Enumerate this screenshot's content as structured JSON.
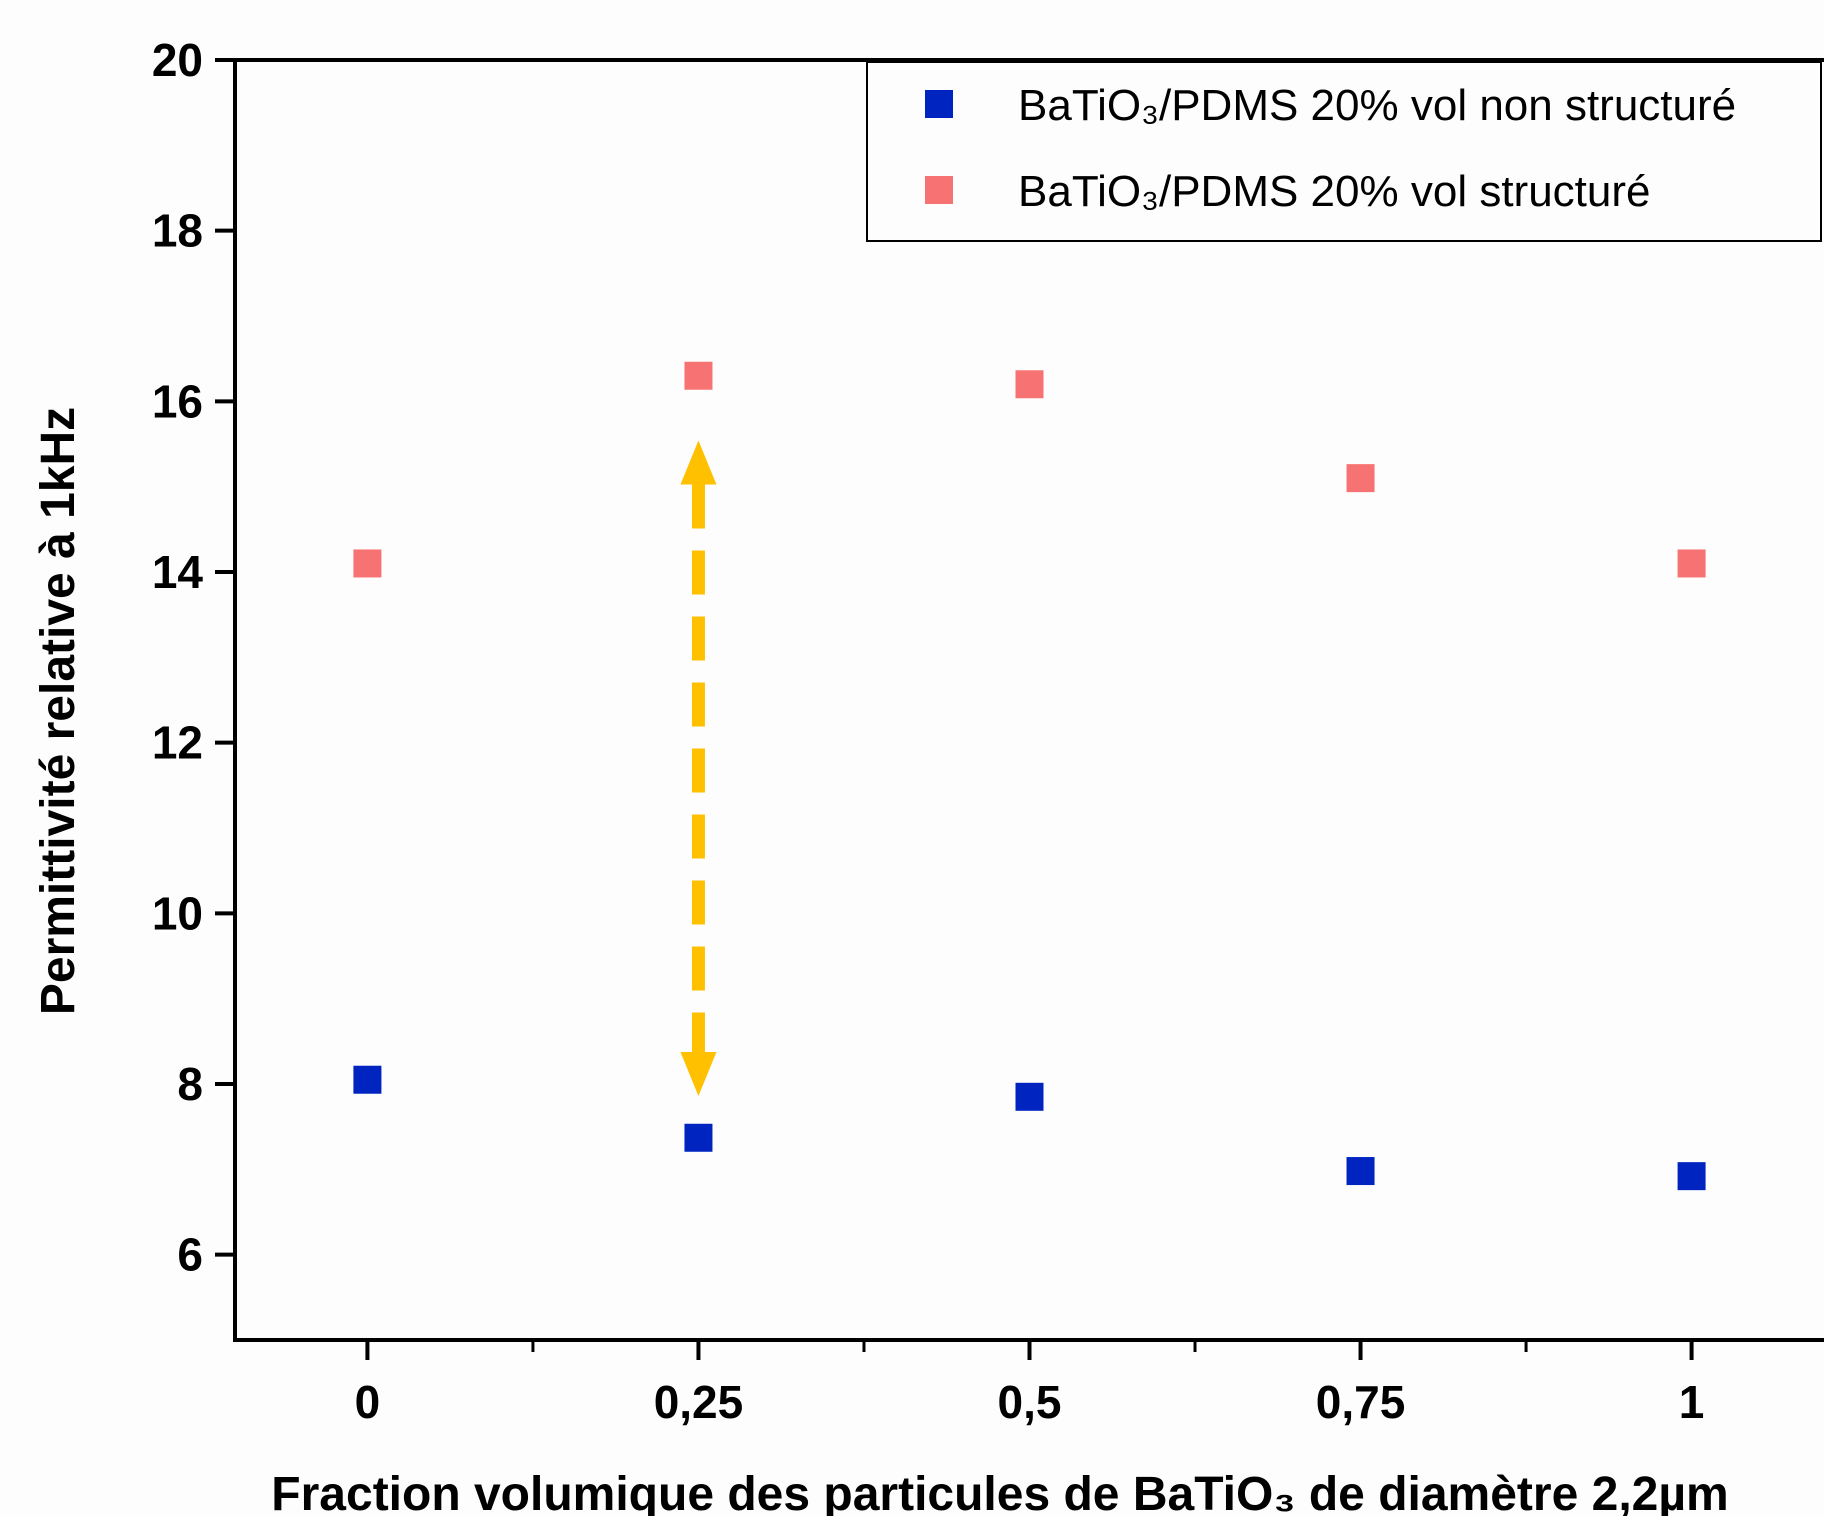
{
  "chart_data": {
    "type": "scatter",
    "xlabel": "Fraction volumique des particules de BaTiO₃ de diamètre 2,2µm",
    "ylabel": "Permittivité relative à 1kHz",
    "x_ticks": [
      {
        "value": 0,
        "label": "0"
      },
      {
        "value": 0.25,
        "label": "0,25"
      },
      {
        "value": 0.5,
        "label": "0,5"
      },
      {
        "value": 0.75,
        "label": "0,75"
      },
      {
        "value": 1,
        "label": "1"
      }
    ],
    "y_ticks": [
      {
        "value": 6,
        "label": "6"
      },
      {
        "value": 8,
        "label": "8"
      },
      {
        "value": 10,
        "label": "10"
      },
      {
        "value": 12,
        "label": "12"
      },
      {
        "value": 14,
        "label": "14"
      },
      {
        "value": 16,
        "label": "16"
      },
      {
        "value": 18,
        "label": "18"
      },
      {
        "value": 20,
        "label": "20"
      }
    ],
    "xlim": [
      -0.1,
      1.1
    ],
    "ylim": [
      5,
      20
    ],
    "grid": false,
    "legend_position": "top-right",
    "series": [
      {
        "name": "BaTiO₃/PDMS 20% vol non structuré",
        "color": "#0024c0",
        "marker": "square",
        "points": [
          {
            "x": 0,
            "y": 8.05
          },
          {
            "x": 0.25,
            "y": 7.37
          },
          {
            "x": 0.5,
            "y": 7.85
          },
          {
            "x": 0.75,
            "y": 6.98
          },
          {
            "x": 1,
            "y": 6.92
          }
        ]
      },
      {
        "name": "BaTiO₃/PDMS 20% vol structuré",
        "color": "#f77272",
        "marker": "square",
        "points": [
          {
            "x": 0,
            "y": 14.1
          },
          {
            "x": 0.25,
            "y": 16.3
          },
          {
            "x": 0.5,
            "y": 16.2
          },
          {
            "x": 0.75,
            "y": 15.1
          },
          {
            "x": 1,
            "y": 14.1
          }
        ]
      }
    ],
    "annotations": [
      {
        "type": "double-arrow",
        "style": "dashed",
        "color": "#ffc000",
        "x": 0.25,
        "y_from": 8.0,
        "y_to": 15.4
      }
    ]
  }
}
